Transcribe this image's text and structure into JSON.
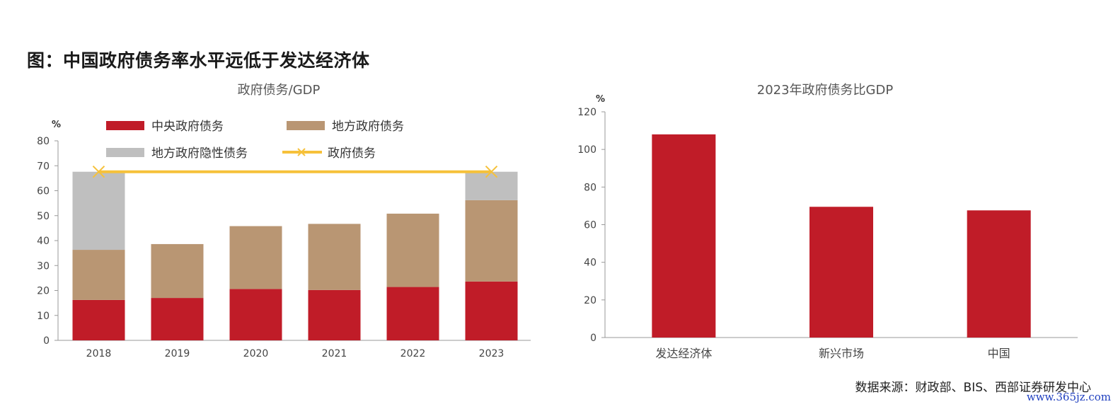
{
  "figure_title": "图：中国政府债务率水平远低于发达经济体",
  "source_note": "数据来源：财政部、BIS、西部证券研发中心",
  "watermark": "www.365jz.com",
  "colors": {
    "central": "#c01c28",
    "local": "#b99673",
    "hidden": "#bfbfbf",
    "total_line": "#f6c13a",
    "bar_right": "#c01c28"
  },
  "chart_data": [
    {
      "type": "bar",
      "stacked": true,
      "title": "政府债务/GDP",
      "ylabel": "%",
      "xlabel": "",
      "ylim": [
        0,
        80
      ],
      "yticks": [
        0,
        10,
        20,
        30,
        40,
        50,
        60,
        70,
        80
      ],
      "grid": false,
      "legend_position": "top",
      "categories": [
        "2018",
        "2019",
        "2020",
        "2021",
        "2022",
        "2023"
      ],
      "series": [
        {
          "name": "中央政府债务",
          "values": [
            16.2,
            17.0,
            20.6,
            20.2,
            21.4,
            23.6
          ]
        },
        {
          "name": "地方政府债务",
          "values": [
            20.1,
            21.6,
            25.2,
            26.5,
            29.4,
            32.6
          ]
        },
        {
          "name": "地方政府隐性债务",
          "values": [
            31.3,
            0,
            0,
            0,
            0,
            11.4
          ]
        }
      ],
      "line_series": {
        "name": "政府债务",
        "x": [
          "2018",
          "2023"
        ],
        "values": [
          67.6,
          67.6
        ]
      }
    },
    {
      "type": "bar",
      "title": "2023年政府债务比GDP",
      "ylabel": "%",
      "xlabel": "",
      "ylim": [
        0,
        120
      ],
      "yticks": [
        0,
        20,
        40,
        60,
        80,
        100,
        120
      ],
      "grid": false,
      "categories": [
        "发达经济体",
        "新兴市场",
        "中国"
      ],
      "values": [
        108,
        69.5,
        67.6
      ]
    }
  ]
}
